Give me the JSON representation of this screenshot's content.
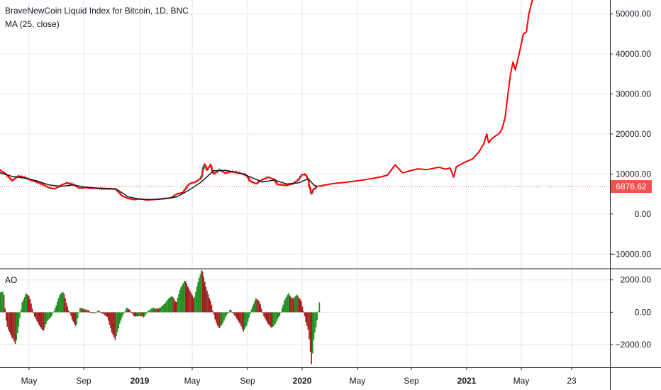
{
  "header": {
    "title": "BraveNewCoin Liquid Index for Bitcoin, 1D, BNC",
    "indicator": "MA (25, close)",
    "ao_title": "AO"
  },
  "colors": {
    "grid": "#e6e6e6",
    "price_line": "#ff0000",
    "candle_up": "#26a69a",
    "candle_down": "#ef5350",
    "ma_line": "#131722",
    "ao_up": "#1e8e1e",
    "ao_down": "#a11d1d",
    "price_badge": "#ef5350"
  },
  "chart_data": [
    {
      "type": "line",
      "name": "price",
      "y_ticks": [
        "50000.00",
        "40000.00",
        "30000.00",
        "20000.00",
        "10000.00",
        "0.00",
        "−10000.00"
      ],
      "y_tick_values": [
        50000,
        40000,
        30000,
        20000,
        10000,
        0,
        -10000
      ],
      "ylim": [
        -13500,
        53500
      ],
      "x_ticks": [
        "May",
        "Sep",
        "2019",
        "May",
        "Sep",
        "2020",
        "May",
        "Sep",
        "2021",
        "May",
        "23"
      ],
      "x_tick_bold": [
        false,
        false,
        true,
        false,
        false,
        true,
        false,
        false,
        true,
        false,
        false
      ],
      "current_price": 6876.62,
      "current_price_label": "6876.62",
      "projected_path": [
        [
          0.52,
          6900
        ],
        [
          0.545,
          7600
        ],
        [
          0.57,
          8000
        ],
        [
          0.6,
          8600
        ],
        [
          0.625,
          9300
        ],
        [
          0.635,
          9700
        ],
        [
          0.648,
          12300
        ],
        [
          0.66,
          10300
        ],
        [
          0.685,
          11300
        ],
        [
          0.7,
          11100
        ],
        [
          0.72,
          11700
        ],
        [
          0.73,
          11200
        ],
        [
          0.738,
          11500
        ],
        [
          0.744,
          9200
        ],
        [
          0.748,
          11800
        ],
        [
          0.76,
          12800
        ],
        [
          0.775,
          13800
        ],
        [
          0.785,
          15500
        ],
        [
          0.793,
          17500
        ],
        [
          0.798,
          20000
        ],
        [
          0.801,
          17800
        ],
        [
          0.806,
          18800
        ],
        [
          0.813,
          19600
        ],
        [
          0.819,
          20200
        ],
        [
          0.823,
          21300
        ],
        [
          0.828,
          24000
        ],
        [
          0.832,
          29000
        ],
        [
          0.837,
          35000
        ],
        [
          0.841,
          38000
        ],
        [
          0.845,
          36000
        ],
        [
          0.851,
          40000
        ],
        [
          0.858,
          45000
        ],
        [
          0.863,
          45500
        ],
        [
          0.867,
          50000
        ],
        [
          0.873,
          53500
        ]
      ],
      "history_close": [
        [
          0.0,
          11000
        ],
        [
          0.01,
          10000
        ],
        [
          0.02,
          8300
        ],
        [
          0.03,
          9500
        ],
        [
          0.04,
          9200
        ],
        [
          0.05,
          8500
        ],
        [
          0.06,
          8000
        ],
        [
          0.07,
          7400
        ],
        [
          0.08,
          6600
        ],
        [
          0.09,
          6300
        ],
        [
          0.1,
          7200
        ],
        [
          0.11,
          7800
        ],
        [
          0.12,
          7400
        ],
        [
          0.13,
          6500
        ],
        [
          0.14,
          6600
        ],
        [
          0.15,
          6500
        ],
        [
          0.16,
          6400
        ],
        [
          0.17,
          6300
        ],
        [
          0.18,
          6300
        ],
        [
          0.19,
          6200
        ],
        [
          0.195,
          5400
        ],
        [
          0.2,
          4500
        ],
        [
          0.21,
          3900
        ],
        [
          0.22,
          3600
        ],
        [
          0.23,
          3800
        ],
        [
          0.24,
          3500
        ],
        [
          0.25,
          3600
        ],
        [
          0.26,
          3700
        ],
        [
          0.27,
          3900
        ],
        [
          0.28,
          4000
        ],
        [
          0.29,
          5000
        ],
        [
          0.3,
          5400
        ],
        [
          0.31,
          7500
        ],
        [
          0.32,
          8000
        ],
        [
          0.33,
          9000
        ],
        [
          0.335,
          12500
        ],
        [
          0.34,
          11000
        ],
        [
          0.345,
          12400
        ],
        [
          0.35,
          10000
        ],
        [
          0.36,
          11000
        ],
        [
          0.37,
          10200
        ],
        [
          0.38,
          10600
        ],
        [
          0.39,
          10300
        ],
        [
          0.4,
          10000
        ],
        [
          0.405,
          9600
        ],
        [
          0.41,
          8200
        ],
        [
          0.42,
          7600
        ],
        [
          0.43,
          8600
        ],
        [
          0.44,
          9200
        ],
        [
          0.45,
          8600
        ],
        [
          0.455,
          7400
        ],
        [
          0.46,
          7300
        ],
        [
          0.47,
          7200
        ],
        [
          0.48,
          7500
        ],
        [
          0.49,
          8700
        ],
        [
          0.495,
          9800
        ],
        [
          0.5,
          10000
        ],
        [
          0.505,
          8800
        ],
        [
          0.51,
          5000
        ],
        [
          0.515,
          6300
        ],
        [
          0.52,
          6876
        ]
      ],
      "ma_25": [
        [
          0.0,
          10300
        ],
        [
          0.02,
          9400
        ],
        [
          0.04,
          9000
        ],
        [
          0.06,
          8300
        ],
        [
          0.08,
          7300
        ],
        [
          0.1,
          6900
        ],
        [
          0.12,
          7300
        ],
        [
          0.14,
          6700
        ],
        [
          0.16,
          6500
        ],
        [
          0.18,
          6400
        ],
        [
          0.19,
          6300
        ],
        [
          0.2,
          5300
        ],
        [
          0.21,
          4300
        ],
        [
          0.23,
          3700
        ],
        [
          0.25,
          3600
        ],
        [
          0.27,
          3800
        ],
        [
          0.29,
          4300
        ],
        [
          0.31,
          6000
        ],
        [
          0.33,
          8000
        ],
        [
          0.35,
          10800
        ],
        [
          0.37,
          10900
        ],
        [
          0.39,
          10400
        ],
        [
          0.41,
          9300
        ],
        [
          0.43,
          8000
        ],
        [
          0.45,
          8500
        ],
        [
          0.47,
          7500
        ],
        [
          0.49,
          7800
        ],
        [
          0.505,
          8800
        ],
        [
          0.515,
          7200
        ],
        [
          0.52,
          6900
        ]
      ]
    },
    {
      "type": "bar",
      "name": "AO",
      "y_ticks": [
        "2000.00",
        "0.00",
        "−2000.00"
      ],
      "y_tick_values": [
        2000,
        0,
        -2000
      ],
      "ylim": [
        -3400,
        2600
      ],
      "profile": [
        [
          0.0,
          1200
        ],
        [
          0.005,
          1300
        ],
        [
          0.01,
          -800
        ],
        [
          0.018,
          -1500
        ],
        [
          0.025,
          -2000
        ],
        [
          0.03,
          -800
        ],
        [
          0.035,
          600
        ],
        [
          0.042,
          1200
        ],
        [
          0.048,
          900
        ],
        [
          0.055,
          -200
        ],
        [
          0.062,
          -700
        ],
        [
          0.07,
          -1200
        ],
        [
          0.077,
          -500
        ],
        [
          0.083,
          -300
        ],
        [
          0.09,
          300
        ],
        [
          0.097,
          1100
        ],
        [
          0.103,
          1300
        ],
        [
          0.11,
          300
        ],
        [
          0.118,
          -500
        ],
        [
          0.124,
          -900
        ],
        [
          0.13,
          300
        ],
        [
          0.137,
          200
        ],
        [
          0.145,
          100
        ],
        [
          0.152,
          -100
        ],
        [
          0.16,
          100
        ],
        [
          0.168,
          -100
        ],
        [
          0.175,
          -300
        ],
        [
          0.182,
          -1200
        ],
        [
          0.188,
          -1700
        ],
        [
          0.194,
          -900
        ],
        [
          0.2,
          -200
        ],
        [
          0.207,
          300
        ],
        [
          0.213,
          100
        ],
        [
          0.22,
          -300
        ],
        [
          0.228,
          -200
        ],
        [
          0.235,
          -300
        ],
        [
          0.242,
          100
        ],
        [
          0.25,
          300
        ],
        [
          0.258,
          200
        ],
        [
          0.266,
          400
        ],
        [
          0.274,
          800
        ],
        [
          0.281,
          1000
        ],
        [
          0.288,
          600
        ],
        [
          0.295,
          1500
        ],
        [
          0.302,
          2000
        ],
        [
          0.31,
          1400
        ],
        [
          0.317,
          800
        ],
        [
          0.324,
          1900
        ],
        [
          0.33,
          2700
        ],
        [
          0.337,
          1500
        ],
        [
          0.345,
          600
        ],
        [
          0.352,
          -500
        ],
        [
          0.358,
          -1000
        ],
        [
          0.364,
          -700
        ],
        [
          0.37,
          -200
        ],
        [
          0.377,
          200
        ],
        [
          0.384,
          -200
        ],
        [
          0.391,
          -600
        ],
        [
          0.398,
          -1200
        ],
        [
          0.405,
          -700
        ],
        [
          0.412,
          300
        ],
        [
          0.419,
          900
        ],
        [
          0.425,
          600
        ],
        [
          0.432,
          -300
        ],
        [
          0.438,
          -700
        ],
        [
          0.445,
          -1000
        ],
        [
          0.452,
          -600
        ],
        [
          0.458,
          -200
        ],
        [
          0.465,
          700
        ],
        [
          0.472,
          1200
        ],
        [
          0.479,
          800
        ],
        [
          0.486,
          1100
        ],
        [
          0.493,
          700
        ],
        [
          0.5,
          -500
        ],
        [
          0.505,
          -1200
        ],
        [
          0.51,
          -3300
        ],
        [
          0.514,
          -1500
        ],
        [
          0.518,
          -800
        ],
        [
          0.523,
          700
        ]
      ]
    }
  ]
}
